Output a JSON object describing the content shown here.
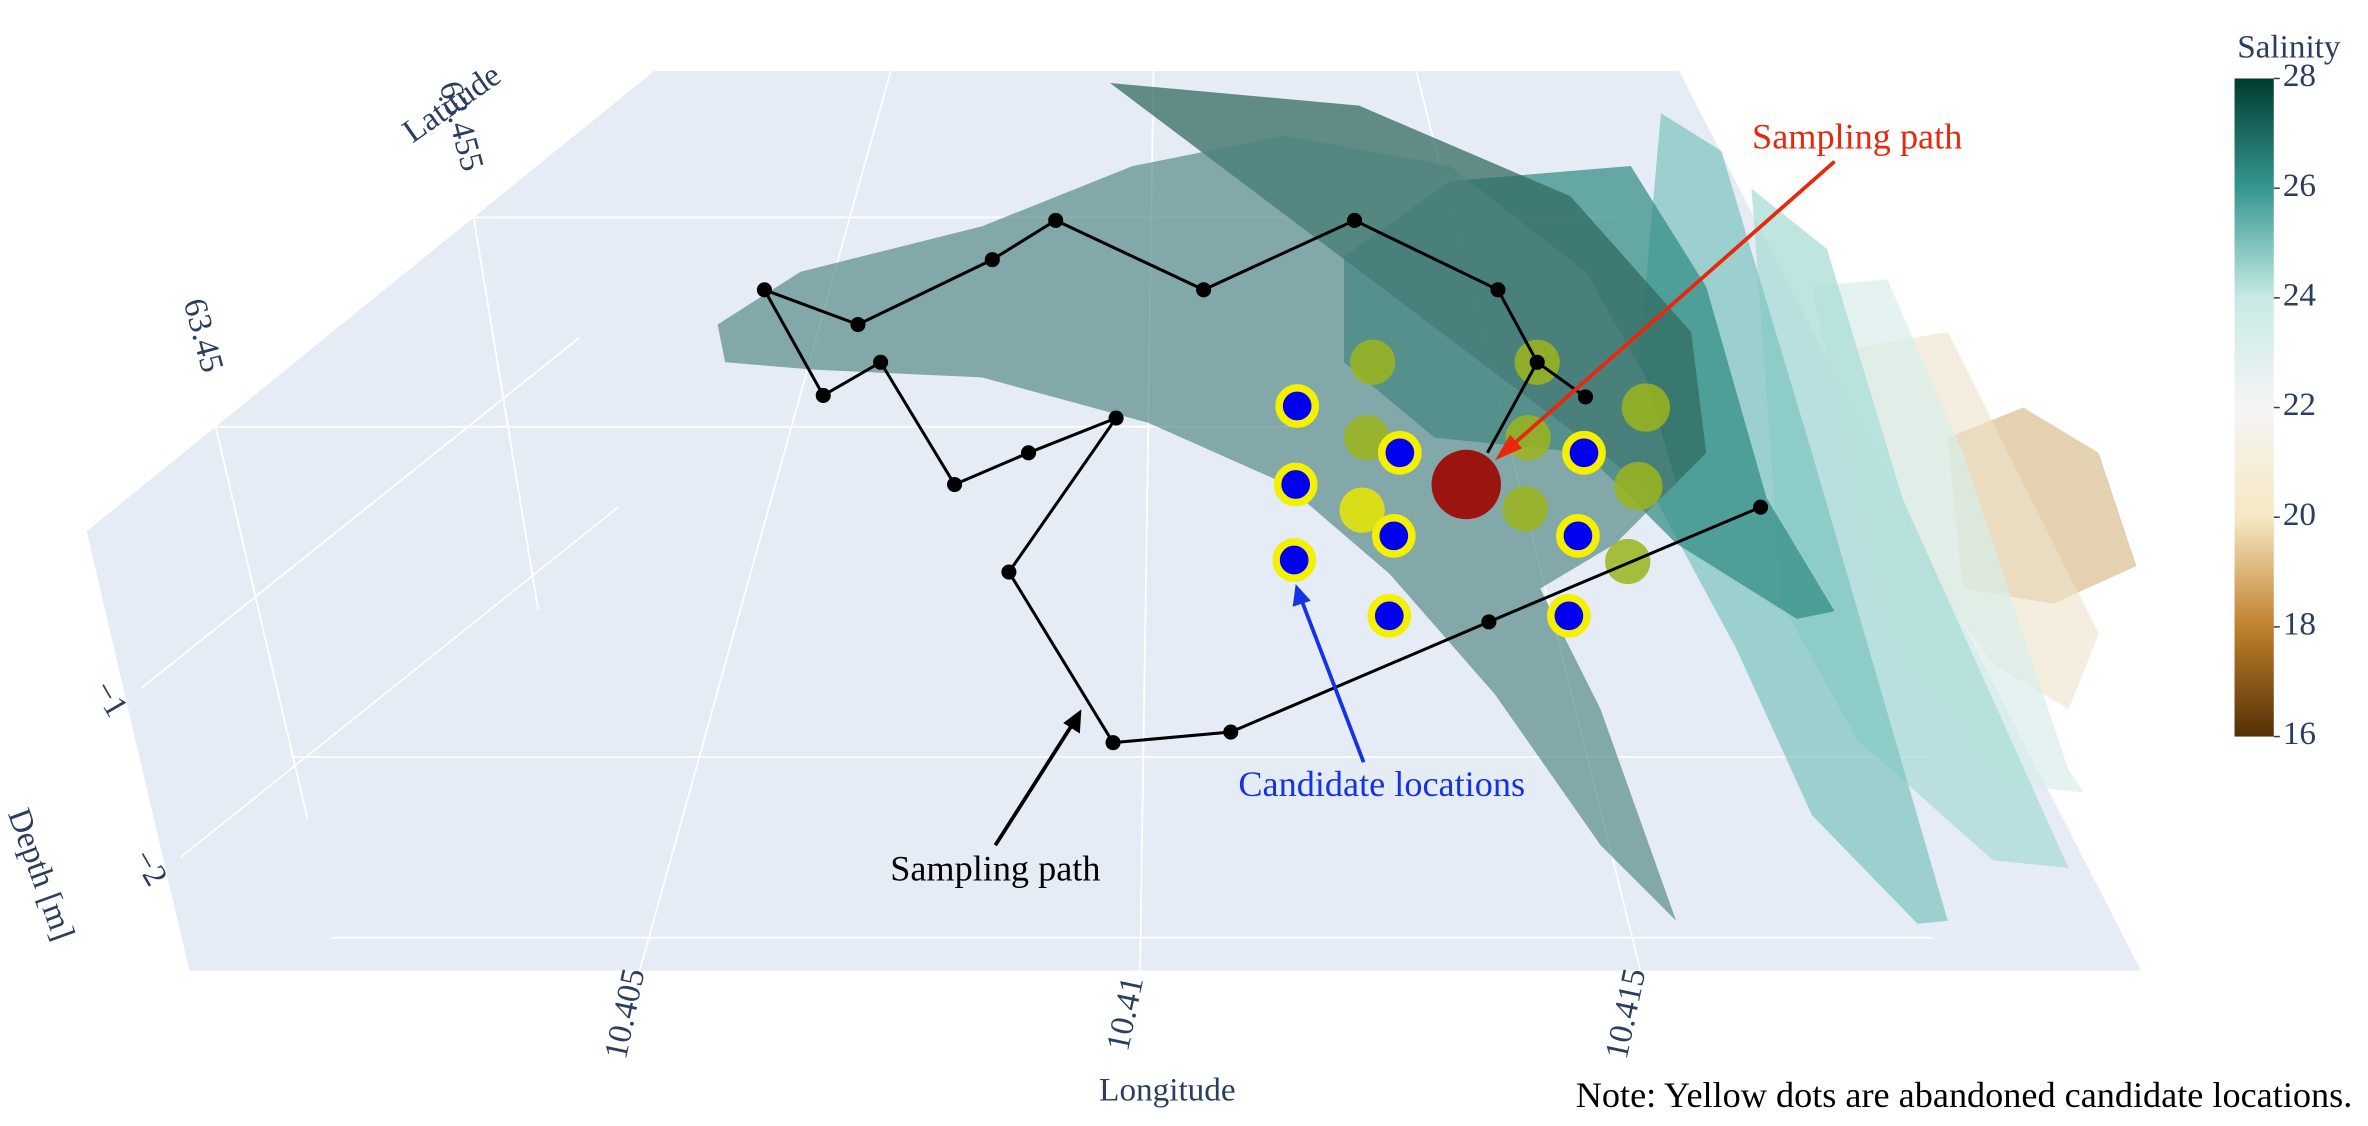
{
  "chart_data": {
    "type": "scatter3d",
    "xlabel": "Longitude",
    "ylabel": "Latitude",
    "zlabel": "Depth [m]",
    "xlim": [
      10.4005,
      10.42
    ],
    "xticks": [
      10.405,
      10.41,
      10.415
    ],
    "ylim": [
      63.4475,
      63.4585
    ],
    "yticks": [
      63.45,
      63.455
    ],
    "zlim": [
      -2.6,
      0
    ],
    "zticks": [
      {
        "value": -1,
        "label": "−1"
      },
      {
        "value": -2,
        "label": "−2"
      }
    ],
    "colorbar": {
      "title": "Salinity",
      "clim": [
        16,
        28
      ],
      "ticks": [
        16,
        18,
        20,
        22,
        24,
        26,
        28
      ],
      "colors": [
        "#543005",
        "#bf812d",
        "#f6e8c3",
        "#f5f5f5",
        "#c7eae5",
        "#35978f",
        "#003c30"
      ]
    },
    "annotations": [
      {
        "text": "Sampling path",
        "color": "#e8280a"
      },
      {
        "text": "Sampling path",
        "color": "#000000"
      },
      {
        "text": "Candidate locations",
        "color": "#1432e6"
      }
    ],
    "note": "Note: Yellow dots are abandoned candidate locations."
  }
}
